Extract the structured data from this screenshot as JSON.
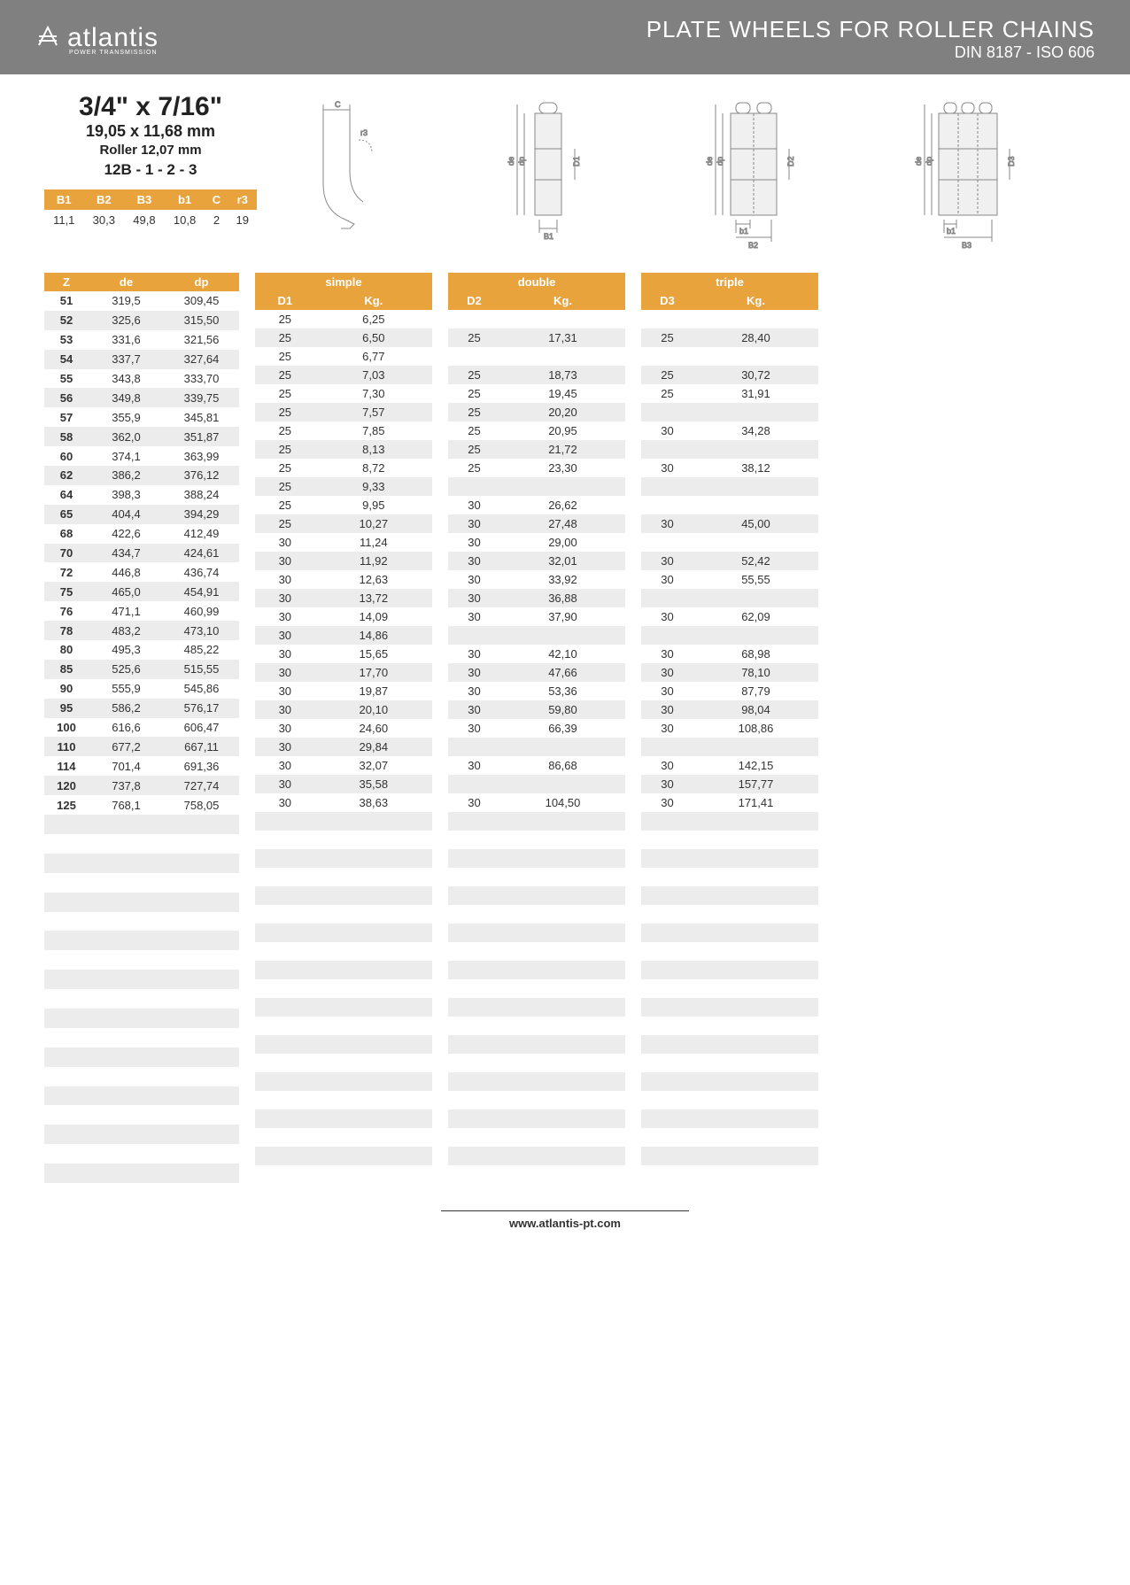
{
  "header": {
    "logo_text": "atlantis",
    "logo_sub": "POWER TRANSMISSION",
    "title": "PLATE WHEELS FOR ROLLER CHAINS",
    "subtitle": "DIN 8187 - ISO 606"
  },
  "spec": {
    "main": "3/4\" x 7/16\"",
    "mm": "19,05 x 11,68 mm",
    "roller": "Roller 12,07 mm",
    "code": "12B - 1 - 2 - 3"
  },
  "small_table": {
    "headers": [
      "B1",
      "B2",
      "B3",
      "b1",
      "C",
      "r3"
    ],
    "row": [
      "11,1",
      "30,3",
      "49,8",
      "10,8",
      "2",
      "19"
    ]
  },
  "colors": {
    "header_bg": "#808080",
    "accent": "#e8a33d",
    "stripe": "#ececec",
    "text": "#333333",
    "white": "#ffffff"
  },
  "main_table": {
    "group_labels": {
      "simple": "simple",
      "double": "double",
      "triple": "triple"
    },
    "base_headers": [
      "Z",
      "de",
      "dp"
    ],
    "simple_headers": [
      "D1",
      "Kg."
    ],
    "double_headers": [
      "D2",
      "Kg."
    ],
    "triple_headers": [
      "D3",
      "Kg."
    ],
    "rows": [
      {
        "z": "51",
        "de": "319,5",
        "dp": "309,45",
        "d1": "25",
        "kg1": "6,25",
        "d2": "",
        "kg2": "",
        "d3": "",
        "kg3": ""
      },
      {
        "z": "52",
        "de": "325,6",
        "dp": "315,50",
        "d1": "25",
        "kg1": "6,50",
        "d2": "25",
        "kg2": "17,31",
        "d3": "25",
        "kg3": "28,40"
      },
      {
        "z": "53",
        "de": "331,6",
        "dp": "321,56",
        "d1": "25",
        "kg1": "6,77",
        "d2": "",
        "kg2": "",
        "d3": "",
        "kg3": ""
      },
      {
        "z": "54",
        "de": "337,7",
        "dp": "327,64",
        "d1": "25",
        "kg1": "7,03",
        "d2": "25",
        "kg2": "18,73",
        "d3": "25",
        "kg3": "30,72"
      },
      {
        "z": "55",
        "de": "343,8",
        "dp": "333,70",
        "d1": "25",
        "kg1": "7,30",
        "d2": "25",
        "kg2": "19,45",
        "d3": "25",
        "kg3": "31,91"
      },
      {
        "z": "56",
        "de": "349,8",
        "dp": "339,75",
        "d1": "25",
        "kg1": "7,57",
        "d2": "25",
        "kg2": "20,20",
        "d3": "",
        "kg3": ""
      },
      {
        "z": "57",
        "de": "355,9",
        "dp": "345,81",
        "d1": "25",
        "kg1": "7,85",
        "d2": "25",
        "kg2": "20,95",
        "d3": "30",
        "kg3": "34,28"
      },
      {
        "z": "58",
        "de": "362,0",
        "dp": "351,87",
        "d1": "25",
        "kg1": "8,13",
        "d2": "25",
        "kg2": "21,72",
        "d3": "",
        "kg3": ""
      },
      {
        "z": "60",
        "de": "374,1",
        "dp": "363,99",
        "d1": "25",
        "kg1": "8,72",
        "d2": "25",
        "kg2": "23,30",
        "d3": "30",
        "kg3": "38,12"
      },
      {
        "z": "62",
        "de": "386,2",
        "dp": "376,12",
        "d1": "25",
        "kg1": "9,33",
        "d2": "",
        "kg2": "",
        "d3": "",
        "kg3": ""
      },
      {
        "z": "64",
        "de": "398,3",
        "dp": "388,24",
        "d1": "25",
        "kg1": "9,95",
        "d2": "30",
        "kg2": "26,62",
        "d3": "",
        "kg3": ""
      },
      {
        "z": "65",
        "de": "404,4",
        "dp": "394,29",
        "d1": "25",
        "kg1": "10,27",
        "d2": "30",
        "kg2": "27,48",
        "d3": "30",
        "kg3": "45,00"
      },
      {
        "z": "68",
        "de": "422,6",
        "dp": "412,49",
        "d1": "30",
        "kg1": "11,24",
        "d2": "30",
        "kg2": "29,00",
        "d3": "",
        "kg3": ""
      },
      {
        "z": "70",
        "de": "434,7",
        "dp": "424,61",
        "d1": "30",
        "kg1": "11,92",
        "d2": "30",
        "kg2": "32,01",
        "d3": "30",
        "kg3": "52,42"
      },
      {
        "z": "72",
        "de": "446,8",
        "dp": "436,74",
        "d1": "30",
        "kg1": "12,63",
        "d2": "30",
        "kg2": "33,92",
        "d3": "30",
        "kg3": "55,55"
      },
      {
        "z": "75",
        "de": "465,0",
        "dp": "454,91",
        "d1": "30",
        "kg1": "13,72",
        "d2": "30",
        "kg2": "36,88",
        "d3": "",
        "kg3": ""
      },
      {
        "z": "76",
        "de": "471,1",
        "dp": "460,99",
        "d1": "30",
        "kg1": "14,09",
        "d2": "30",
        "kg2": "37,90",
        "d3": "30",
        "kg3": "62,09"
      },
      {
        "z": "78",
        "de": "483,2",
        "dp": "473,10",
        "d1": "30",
        "kg1": "14,86",
        "d2": "",
        "kg2": "",
        "d3": "",
        "kg3": ""
      },
      {
        "z": "80",
        "de": "495,3",
        "dp": "485,22",
        "d1": "30",
        "kg1": "15,65",
        "d2": "30",
        "kg2": "42,10",
        "d3": "30",
        "kg3": "68,98"
      },
      {
        "z": "85",
        "de": "525,6",
        "dp": "515,55",
        "d1": "30",
        "kg1": "17,70",
        "d2": "30",
        "kg2": "47,66",
        "d3": "30",
        "kg3": "78,10"
      },
      {
        "z": "90",
        "de": "555,9",
        "dp": "545,86",
        "d1": "30",
        "kg1": "19,87",
        "d2": "30",
        "kg2": "53,36",
        "d3": "30",
        "kg3": "87,79"
      },
      {
        "z": "95",
        "de": "586,2",
        "dp": "576,17",
        "d1": "30",
        "kg1": "20,10",
        "d2": "30",
        "kg2": "59,80",
        "d3": "30",
        "kg3": "98,04"
      },
      {
        "z": "100",
        "de": "616,6",
        "dp": "606,47",
        "d1": "30",
        "kg1": "24,60",
        "d2": "30",
        "kg2": "66,39",
        "d3": "30",
        "kg3": "108,86"
      },
      {
        "z": "110",
        "de": "677,2",
        "dp": "667,11",
        "d1": "30",
        "kg1": "29,84",
        "d2": "",
        "kg2": "",
        "d3": "",
        "kg3": ""
      },
      {
        "z": "114",
        "de": "701,4",
        "dp": "691,36",
        "d1": "30",
        "kg1": "32,07",
        "d2": "30",
        "kg2": "86,68",
        "d3": "30",
        "kg3": "142,15"
      },
      {
        "z": "120",
        "de": "737,8",
        "dp": "727,74",
        "d1": "30",
        "kg1": "35,58",
        "d2": "",
        "kg2": "",
        "d3": "30",
        "kg3": "157,77"
      },
      {
        "z": "125",
        "de": "768,1",
        "dp": "758,05",
        "d1": "30",
        "kg1": "38,63",
        "d2": "30",
        "kg2": "104,50",
        "d3": "30",
        "kg3": "171,41"
      }
    ],
    "empty_rows": 20
  },
  "footer": {
    "url": "www.atlantis-pt.com"
  }
}
